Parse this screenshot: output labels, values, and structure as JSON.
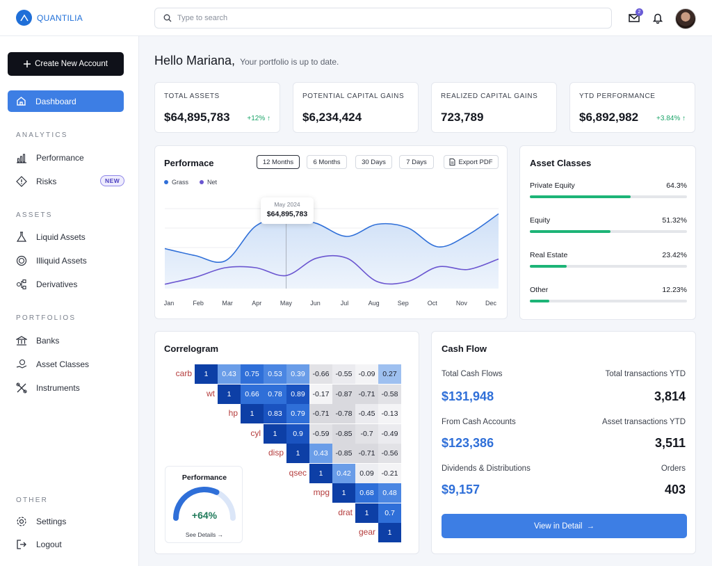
{
  "app": {
    "name": "QUANTILIA"
  },
  "search": {
    "placeholder": "Type to search"
  },
  "header": {
    "mail_badge": "2",
    "icons": [
      "mail-icon",
      "bell-icon"
    ]
  },
  "sidebar": {
    "create_button": "Create New Account",
    "dashboard": "Dashboard",
    "sections": [
      {
        "title": "ANALYTICS",
        "items": [
          "Performance",
          "Risks"
        ]
      },
      {
        "title": "ASSETS",
        "items": [
          "Liquid Assets",
          "Illiquid Assets",
          "Derivatives"
        ]
      },
      {
        "title": "PORTFOLIOS",
        "items": [
          "Banks",
          "Asset Classes",
          "Instruments"
        ]
      },
      {
        "title": "OTHER",
        "items": [
          "Settings",
          "Logout"
        ]
      }
    ],
    "new_badge": "NEW"
  },
  "greeting": {
    "title": "Hello Mariana,",
    "subtitle": "Your portfolio is up to date."
  },
  "kpis": [
    {
      "label": "TOTAL ASSETS",
      "value": "$64,895,783",
      "delta": "+12%"
    },
    {
      "label": "POTENTIAL CAPITAL GAINS",
      "value": "$6,234,424",
      "delta": ""
    },
    {
      "label": "REALIZED CAPITAL GAINS",
      "value": "723,789",
      "delta": ""
    },
    {
      "label": "YTD PERFORMANCE",
      "value": "$6,892,982",
      "delta": "+3.84%"
    }
  ],
  "performance": {
    "title": "Performace",
    "ranges": [
      "12 Months",
      "6 Months",
      "30 Days",
      "7 Days"
    ],
    "active_range": "12 Months",
    "export": "Export PDF",
    "tooltip": {
      "label": "May 2024",
      "value": "$64,895,783"
    }
  },
  "chart_data": {
    "type": "area",
    "categories": [
      "Jan",
      "Feb",
      "Mar",
      "Apr",
      "May",
      "Jun",
      "Jul",
      "Aug",
      "Sep",
      "Oct",
      "Nov",
      "Dec"
    ],
    "series": [
      {
        "name": "Grass",
        "values": [
          46,
          38,
          32,
          72,
          82,
          75,
          60,
          74,
          70,
          48,
          62,
          86
        ]
      },
      {
        "name": "Net",
        "values": [
          5,
          13,
          24,
          24,
          15,
          35,
          35,
          8,
          8,
          25,
          22,
          34
        ]
      }
    ],
    "colors": [
      "#2f6fd8",
      "#6a55d0"
    ],
    "grid": true,
    "legend": "top-left",
    "ylim": [
      0,
      100
    ]
  },
  "asset_classes": {
    "title": "Asset Classes",
    "items": [
      {
        "name": "Private Equity",
        "pct": "64.3%",
        "value": 64.3
      },
      {
        "name": "Equity",
        "pct": "51.32%",
        "value": 51.32
      },
      {
        "name": "Real Estate",
        "pct": "23.42%",
        "value": 23.42
      },
      {
        "name": "Other",
        "pct": "12.23%",
        "value": 12.23
      }
    ]
  },
  "correlogram": {
    "title": "Correlogram",
    "vars": [
      "carb",
      "wt",
      "hp",
      "cyl",
      "disp",
      "qsec",
      "mpg",
      "drat",
      "gear"
    ],
    "rows": [
      [
        "1",
        "0.43",
        "0.75",
        "0.53",
        "0.39",
        "-0.66",
        "-0.55",
        "-0.09",
        "0.27"
      ],
      [
        "1",
        "0.66",
        "0.78",
        "0.89",
        "-0.17",
        "-0.87",
        "-0.71",
        "-0.58"
      ],
      [
        "1",
        "0.83",
        "0.79",
        "-0.71",
        "-0.78",
        "-0.45",
        "-0.13"
      ],
      [
        "1",
        "0.9",
        "-0.59",
        "-0.85",
        "-0.7",
        "-0.49"
      ],
      [
        "1",
        "0.43",
        "-0.85",
        "-0.71",
        "-0.56"
      ],
      [
        "1",
        "0.42",
        "0.09",
        "-0.21"
      ],
      [
        "1",
        "0.68",
        "0.48"
      ],
      [
        "1",
        "0.7"
      ],
      [
        "1"
      ]
    ],
    "gauge": {
      "title": "Performance",
      "value": "+64%",
      "fraction": 0.64,
      "link": "See Details"
    }
  },
  "cash_flow": {
    "title": "Cash Flow",
    "items": [
      {
        "label": "Total Cash Flows",
        "value": "$131,948",
        "label2": "Total transactions YTD",
        "value2": "3,814"
      },
      {
        "label": "From Cash Accounts",
        "value": "$123,386",
        "label2": "Asset transactions YTD",
        "value2": "3,511"
      },
      {
        "label": "Dividends & Distributions",
        "value": "$9,157",
        "label2": "Orders",
        "value2": "403"
      }
    ],
    "button": "View in Detail"
  }
}
